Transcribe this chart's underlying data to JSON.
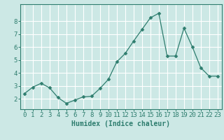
{
  "x": [
    0,
    1,
    2,
    3,
    4,
    5,
    6,
    7,
    8,
    9,
    10,
    11,
    12,
    13,
    14,
    15,
    16,
    17,
    18,
    19,
    20,
    21,
    22,
    23
  ],
  "y": [
    2.4,
    2.9,
    3.2,
    2.85,
    2.1,
    1.65,
    1.9,
    2.15,
    2.2,
    2.8,
    3.5,
    4.85,
    5.5,
    6.45,
    7.35,
    8.25,
    8.6,
    5.3,
    5.3,
    7.45,
    6.0,
    4.4,
    3.75,
    3.75
  ],
  "line_color": "#2e7d6e",
  "marker": "D",
  "marker_size": 2.5,
  "bg_color": "#cce8e5",
  "grid_color": "#ffffff",
  "xlabel": "Humidex (Indice chaleur)",
  "xlim": [
    -0.5,
    23.5
  ],
  "ylim": [
    1.2,
    9.3
  ],
  "yticks": [
    2,
    3,
    4,
    5,
    6,
    7,
    8
  ],
  "tick_fontsize": 6.5,
  "label_fontsize": 7.0
}
